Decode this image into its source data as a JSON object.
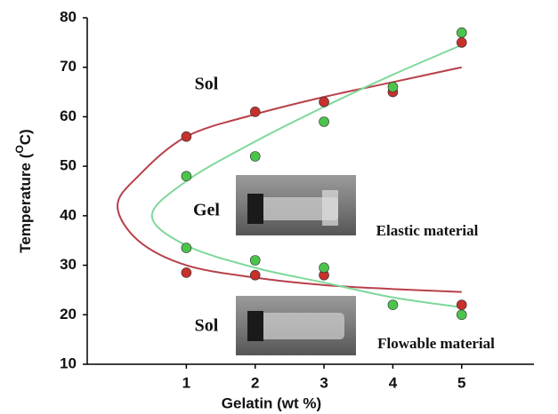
{
  "chart_data": {
    "type": "scatter",
    "x_label": "Gelatin (wt %)",
    "y_label": "Temperature (",
    "y_label_sup": "O",
    "y_label_end": "C)",
    "xlim": [
      -0.44,
      6.05
    ],
    "ylim": [
      10,
      80
    ],
    "xticks": [
      1,
      2,
      3,
      4,
      5
    ],
    "yticks": [
      10,
      20,
      30,
      40,
      50,
      60,
      70,
      80
    ],
    "series": [
      {
        "color": "#c8302c",
        "x": [
          1,
          2,
          3,
          4,
          5,
          1,
          2,
          3,
          5
        ],
        "values": [
          56,
          61,
          63,
          65,
          75,
          28.5,
          28,
          28,
          22
        ]
      },
      {
        "color": "#4cc44c",
        "x": [
          1,
          2,
          3,
          4,
          5,
          1,
          2,
          3,
          4,
          5
        ],
        "values": [
          48,
          52,
          59,
          66,
          77,
          33.5,
          31,
          29.5,
          22,
          20
        ]
      }
    ],
    "curves": [
      {
        "color": "#b8404a",
        "x": [
          5,
          4,
          3,
          2,
          1,
          0.3,
          0,
          0.3,
          1,
          2,
          3,
          4,
          5
        ],
        "values": [
          24.6,
          25.2,
          26,
          27.5,
          30,
          35,
          42,
          48,
          56,
          60.5,
          64,
          67,
          70
        ]
      },
      {
        "color": "#7fd89a",
        "x": [
          5,
          4,
          3,
          2,
          1,
          0.5,
          1,
          2,
          3,
          4,
          5
        ],
        "values": [
          21.5,
          23.5,
          26.5,
          29.5,
          34,
          40,
          47,
          55,
          62,
          68.5,
          74.5
        ]
      }
    ],
    "annotations": [
      "Sol",
      "Gel",
      "Sol",
      "Elastic material",
      "Flowable material"
    ]
  }
}
